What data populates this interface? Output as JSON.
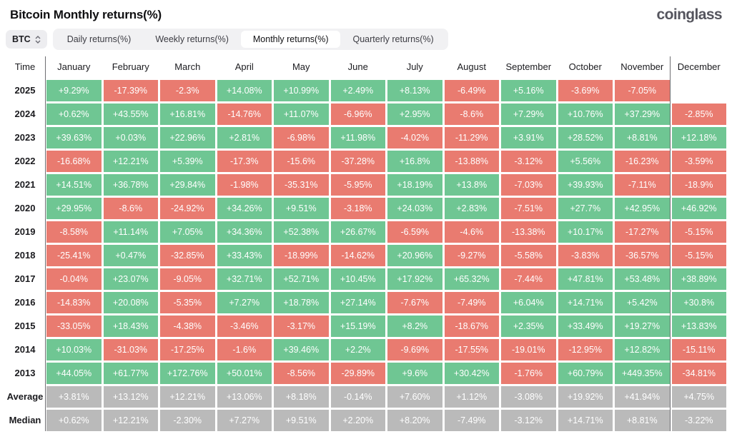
{
  "header": {
    "title": "Bitcoin Monthly returns(%)",
    "logo": "coinglass"
  },
  "controls": {
    "symbol_select": {
      "value": "BTC",
      "icon": "updown-chevrons-icon"
    },
    "tabs": [
      {
        "label": "Daily returns(%)",
        "active": false
      },
      {
        "label": "Weekly returns(%)",
        "active": false
      },
      {
        "label": "Monthly returns(%)",
        "active": true
      },
      {
        "label": "Quarterly returns(%)",
        "active": false
      }
    ]
  },
  "colors": {
    "pos": "#6fc693",
    "neg": "#e97b70",
    "neutral": "#bababa",
    "tabbar_bg": "#f1f1f3",
    "separator_line": "#6e6e72"
  },
  "chart_data": {
    "type": "table",
    "title": "Bitcoin Monthly returns(%)",
    "legend": "green = positive monthly return, red = negative monthly return, gray = summary rows",
    "columns": [
      "Time",
      "January",
      "February",
      "March",
      "April",
      "May",
      "June",
      "July",
      "August",
      "September",
      "October",
      "November",
      "December"
    ],
    "rows": [
      {
        "label": "2025",
        "values": [
          "+9.29%",
          "-17.39%",
          "-2.3%",
          "+14.08%",
          "+10.99%",
          "+2.49%",
          "+8.13%",
          "-6.49%",
          "+5.16%",
          "-3.69%",
          "-7.05%",
          ""
        ]
      },
      {
        "label": "2024",
        "values": [
          "+0.62%",
          "+43.55%",
          "+16.81%",
          "-14.76%",
          "+11.07%",
          "-6.96%",
          "+2.95%",
          "-8.6%",
          "+7.29%",
          "+10.76%",
          "+37.29%",
          "-2.85%"
        ]
      },
      {
        "label": "2023",
        "values": [
          "+39.63%",
          "+0.03%",
          "+22.96%",
          "+2.81%",
          "-6.98%",
          "+11.98%",
          "-4.02%",
          "-11.29%",
          "+3.91%",
          "+28.52%",
          "+8.81%",
          "+12.18%"
        ]
      },
      {
        "label": "2022",
        "values": [
          "-16.68%",
          "+12.21%",
          "+5.39%",
          "-17.3%",
          "-15.6%",
          "-37.28%",
          "+16.8%",
          "-13.88%",
          "-3.12%",
          "+5.56%",
          "-16.23%",
          "-3.59%"
        ]
      },
      {
        "label": "2021",
        "values": [
          "+14.51%",
          "+36.78%",
          "+29.84%",
          "-1.98%",
          "-35.31%",
          "-5.95%",
          "+18.19%",
          "+13.8%",
          "-7.03%",
          "+39.93%",
          "-7.11%",
          "-18.9%"
        ]
      },
      {
        "label": "2020",
        "values": [
          "+29.95%",
          "-8.6%",
          "-24.92%",
          "+34.26%",
          "+9.51%",
          "-3.18%",
          "+24.03%",
          "+2.83%",
          "-7.51%",
          "+27.7%",
          "+42.95%",
          "+46.92%"
        ]
      },
      {
        "label": "2019",
        "values": [
          "-8.58%",
          "+11.14%",
          "+7.05%",
          "+34.36%",
          "+52.38%",
          "+26.67%",
          "-6.59%",
          "-4.6%",
          "-13.38%",
          "+10.17%",
          "-17.27%",
          "-5.15%"
        ]
      },
      {
        "label": "2018",
        "values": [
          "-25.41%",
          "+0.47%",
          "-32.85%",
          "+33.43%",
          "-18.99%",
          "-14.62%",
          "+20.96%",
          "-9.27%",
          "-5.58%",
          "-3.83%",
          "-36.57%",
          "-5.15%"
        ]
      },
      {
        "label": "2017",
        "values": [
          "-0.04%",
          "+23.07%",
          "-9.05%",
          "+32.71%",
          "+52.71%",
          "+10.45%",
          "+17.92%",
          "+65.32%",
          "-7.44%",
          "+47.81%",
          "+53.48%",
          "+38.89%"
        ]
      },
      {
        "label": "2016",
        "values": [
          "-14.83%",
          "+20.08%",
          "-5.35%",
          "+7.27%",
          "+18.78%",
          "+27.14%",
          "-7.67%",
          "-7.49%",
          "+6.04%",
          "+14.71%",
          "+5.42%",
          "+30.8%"
        ]
      },
      {
        "label": "2015",
        "values": [
          "-33.05%",
          "+18.43%",
          "-4.38%",
          "-3.46%",
          "-3.17%",
          "+15.19%",
          "+8.2%",
          "-18.67%",
          "+2.35%",
          "+33.49%",
          "+19.27%",
          "+13.83%"
        ]
      },
      {
        "label": "2014",
        "values": [
          "+10.03%",
          "-31.03%",
          "-17.25%",
          "-1.6%",
          "+39.46%",
          "+2.2%",
          "-9.69%",
          "-17.55%",
          "-19.01%",
          "-12.95%",
          "+12.82%",
          "-15.11%"
        ]
      },
      {
        "label": "2013",
        "values": [
          "+44.05%",
          "+61.77%",
          "+172.76%",
          "+50.01%",
          "-8.56%",
          "-29.89%",
          "+9.6%",
          "+30.42%",
          "-1.76%",
          "+60.79%",
          "+449.35%",
          "-34.81%"
        ]
      },
      {
        "label": "Average",
        "neutral": true,
        "values": [
          "+3.81%",
          "+13.12%",
          "+12.21%",
          "+13.06%",
          "+8.18%",
          "-0.14%",
          "+7.60%",
          "+1.12%",
          "-3.08%",
          "+19.92%",
          "+41.94%",
          "+4.75%"
        ]
      },
      {
        "label": "Median",
        "neutral": true,
        "values": [
          "+0.62%",
          "+12.21%",
          "-2.30%",
          "+7.27%",
          "+9.51%",
          "+2.20%",
          "+8.20%",
          "-7.49%",
          "-3.12%",
          "+14.71%",
          "+8.81%",
          "-3.22%"
        ]
      }
    ]
  }
}
